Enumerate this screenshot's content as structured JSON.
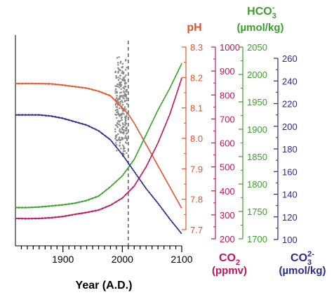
{
  "chart_data": {
    "type": "line",
    "x": {
      "label": "Year (A.D.)",
      "range": [
        1820,
        2100
      ],
      "tick_labels": [
        "1900",
        "2000",
        "2100"
      ],
      "tick_values": [
        1900,
        2000,
        2100
      ]
    },
    "reference_line": {
      "x": 2010,
      "style": "dashed"
    },
    "axes": [
      {
        "key": "pH",
        "title": "pH",
        "title_sub": "",
        "unit": "",
        "color": "#e2552a",
        "range": [
          7.7,
          8.3
        ],
        "ticks": [
          7.7,
          7.8,
          7.9,
          8.0,
          8.1,
          8.2,
          8.3
        ],
        "tick_labels": [
          "7.7",
          "7.8",
          "7.9",
          "8.0",
          "8.1",
          "8.2",
          "8.3"
        ]
      },
      {
        "key": "CO2",
        "title": "CO",
        "title_sub": "2",
        "unit": "(ppmv)",
        "color": "#c0145a",
        "range": [
          200,
          1000
        ],
        "ticks": [
          200,
          300,
          400,
          500,
          600,
          700,
          800,
          900,
          1000
        ],
        "tick_labels": [
          "200",
          "300",
          "400",
          "500",
          "600",
          "700",
          "800",
          "900",
          "1000"
        ]
      },
      {
        "key": "HCO3",
        "title": "HCO",
        "title_sub": "3",
        "title_sup": "-",
        "unit": "(µmol/kg)",
        "color": "#3ba02a",
        "range": [
          1700,
          2050
        ],
        "ticks": [
          1700,
          1750,
          1800,
          1850,
          1900,
          1950,
          2000,
          2050
        ],
        "tick_labels": [
          "1700",
          "1750",
          "1800",
          "1850",
          "1900",
          "1950",
          "2000",
          "2050"
        ]
      },
      {
        "key": "CO3",
        "title": "CO",
        "title_sub": "3",
        "title_sup": "2-",
        "unit": "(µmol/kg)",
        "color": "#2a2a8c",
        "range": [
          100,
          260
        ],
        "ticks": [
          100,
          120,
          140,
          160,
          180,
          200,
          220,
          240,
          260
        ],
        "tick_labels": [
          "100",
          "120",
          "140",
          "160",
          "180",
          "200",
          "220",
          "240",
          "260"
        ]
      }
    ],
    "series": [
      {
        "axis": "pH",
        "color": "#e2552a",
        "points": [
          [
            1820,
            8.18
          ],
          [
            1840,
            8.18
          ],
          [
            1860,
            8.18
          ],
          [
            1880,
            8.179
          ],
          [
            1900,
            8.175
          ],
          [
            1920,
            8.17
          ],
          [
            1940,
            8.165
          ],
          [
            1960,
            8.155
          ],
          [
            1980,
            8.14
          ],
          [
            2000,
            8.1
          ],
          [
            2010,
            8.08
          ],
          [
            2020,
            8.05
          ],
          [
            2040,
            7.98
          ],
          [
            2060,
            7.91
          ],
          [
            2080,
            7.84
          ],
          [
            2100,
            7.77
          ]
        ]
      },
      {
        "axis": "CO2",
        "color": "#c0145a",
        "points": [
          [
            1820,
            285
          ],
          [
            1840,
            284
          ],
          [
            1860,
            285
          ],
          [
            1880,
            288
          ],
          [
            1900,
            293
          ],
          [
            1920,
            302
          ],
          [
            1940,
            310
          ],
          [
            1960,
            320
          ],
          [
            1980,
            340
          ],
          [
            2000,
            370
          ],
          [
            2010,
            395
          ],
          [
            2020,
            420
          ],
          [
            2040,
            500
          ],
          [
            2060,
            600
          ],
          [
            2080,
            720
          ],
          [
            2100,
            870
          ]
        ]
      },
      {
        "axis": "HCO3",
        "color": "#3ba02a",
        "points": [
          [
            1820,
            1757
          ],
          [
            1840,
            1757
          ],
          [
            1860,
            1758
          ],
          [
            1880,
            1760
          ],
          [
            1900,
            1762
          ],
          [
            1920,
            1765
          ],
          [
            1940,
            1770
          ],
          [
            1960,
            1778
          ],
          [
            1980,
            1795
          ],
          [
            2000,
            1815
          ],
          [
            2020,
            1845
          ],
          [
            2040,
            1890
          ],
          [
            2060,
            1935
          ],
          [
            2080,
            1975
          ],
          [
            2100,
            2020
          ]
        ]
      },
      {
        "axis": "CO3",
        "color": "#2a2a8c",
        "points": [
          [
            1820,
            210
          ],
          [
            1840,
            210
          ],
          [
            1860,
            210
          ],
          [
            1880,
            209
          ],
          [
            1900,
            207
          ],
          [
            1920,
            204
          ],
          [
            1940,
            201
          ],
          [
            1960,
            196
          ],
          [
            1980,
            188
          ],
          [
            2000,
            175
          ],
          [
            2020,
            160
          ],
          [
            2040,
            145
          ],
          [
            2060,
            132
          ],
          [
            2080,
            118
          ],
          [
            2100,
            105
          ]
        ]
      }
    ],
    "observations": {
      "axis": "pH",
      "color": "#888888",
      "x_range": [
        1988,
        2008
      ],
      "y_range": [
        7.93,
        8.27
      ]
    },
    "grid": false
  }
}
